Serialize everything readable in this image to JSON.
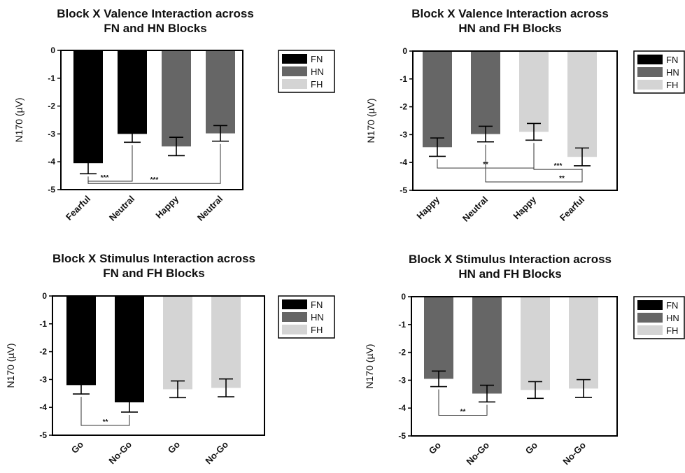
{
  "chart_data": [
    {
      "type": "bar",
      "title": "Block X Valence Interaction across",
      "subtitle": "FN and HN Blocks",
      "ylabel": "N170 (µV)",
      "ylim": [
        -5,
        0
      ],
      "yticks": [
        "0",
        "-1",
        "-2",
        "-3",
        "-4",
        "-5"
      ],
      "categories": [
        "Fearful",
        "Neutral",
        "Happy",
        "Neutral"
      ],
      "values": [
        -4.05,
        -3.0,
        -3.45,
        -2.98
      ],
      "errors": [
        0.38,
        0.3,
        0.33,
        0.28
      ],
      "bar_blocks": [
        "FN",
        "FN",
        "HN",
        "HN"
      ],
      "legend": [
        "FN",
        "HN",
        "FH"
      ],
      "legend_position": "right",
      "significance": [
        {
          "from": 0,
          "to": 1,
          "label": "***"
        },
        {
          "from": 0,
          "to": 3,
          "label": "***"
        }
      ]
    },
    {
      "type": "bar",
      "title": "Block X Valence Interaction across",
      "subtitle": "HN and FH Blocks",
      "ylabel": "N170 (µV)",
      "ylim": [
        -5,
        0
      ],
      "yticks": [
        "0",
        "-1",
        "-2",
        "-3",
        "-4",
        "-5"
      ],
      "categories": [
        "Happy",
        "Neutral",
        "Happy",
        "Fearful"
      ],
      "values": [
        -3.45,
        -2.98,
        -2.9,
        -3.8
      ],
      "errors": [
        0.33,
        0.28,
        0.3,
        0.32
      ],
      "bar_blocks": [
        "HN",
        "HN",
        "FH",
        "FH"
      ],
      "legend": [
        "FN",
        "HN",
        "FH"
      ],
      "legend_position": "right",
      "significance": [
        {
          "from": 0,
          "to": 2,
          "label": "**"
        },
        {
          "from": 2,
          "to": 3,
          "label": "***"
        },
        {
          "from": 1,
          "to": 3,
          "label": "**"
        }
      ]
    },
    {
      "type": "bar",
      "title": "Block X Stimulus Interaction across",
      "subtitle": "FN and FH Blocks",
      "ylabel": "N170 (µV)",
      "ylim": [
        -5,
        0
      ],
      "yticks": [
        "0",
        "-1",
        "-2",
        "-3",
        "-4",
        "-5"
      ],
      "categories": [
        "Go",
        "No-Go",
        "Go",
        "No-Go"
      ],
      "values": [
        -3.2,
        -3.82,
        -3.35,
        -3.3
      ],
      "errors": [
        0.32,
        0.35,
        0.3,
        0.32
      ],
      "bar_blocks": [
        "FN",
        "FN",
        "FH",
        "FH"
      ],
      "legend": [
        "FN",
        "HN",
        "FH"
      ],
      "legend_position": "right",
      "significance": [
        {
          "from": 0,
          "to": 1,
          "label": "**"
        }
      ]
    },
    {
      "type": "bar",
      "title": "Block X Stimulus Interaction across",
      "subtitle": "HN and FH Blocks",
      "ylabel": "N170 (µV)",
      "ylim": [
        -5,
        0
      ],
      "yticks": [
        "0",
        "-1",
        "-2",
        "-3",
        "-4",
        "-5"
      ],
      "categories": [
        "Go",
        "No-Go",
        "Go",
        "No-Go"
      ],
      "values": [
        -2.95,
        -3.48,
        -3.35,
        -3.3
      ],
      "errors": [
        0.28,
        0.3,
        0.3,
        0.32
      ],
      "bar_blocks": [
        "HN",
        "HN",
        "FH",
        "FH"
      ],
      "legend": [
        "FN",
        "HN",
        "FH"
      ],
      "legend_position": "right",
      "significance": [
        {
          "from": 0,
          "to": 1,
          "label": "**"
        }
      ]
    }
  ],
  "colors": {
    "FN": "#000000",
    "HN": "#666666",
    "FH": "#d4d4d4"
  }
}
